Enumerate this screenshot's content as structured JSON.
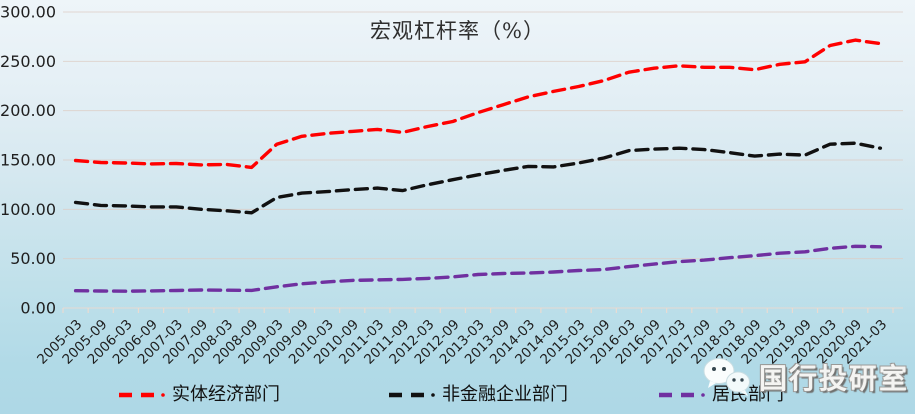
{
  "watermark": {
    "text": "国行投研室",
    "icon": "wechat-icon"
  },
  "colors": {
    "series_real_economy": "#ff0000",
    "series_nonfinancial_corp": "#111111",
    "series_household": "#7030a0",
    "gridline": "#ddccc4",
    "axis_line": "#e9dbd2",
    "axis_text": "#1f1f1f",
    "background_top": "#eef5f9",
    "background_bottom": "#aed8e6"
  },
  "chart_data": {
    "type": "line",
    "title": "宏观杠杆率（%）",
    "xlabel": "",
    "ylabel": "",
    "ylim": [
      0,
      300
    ],
    "y_ticks": [
      0,
      50,
      100,
      150,
      200,
      250,
      300
    ],
    "y_tick_labels": [
      "0.00",
      "50.00",
      "100.00",
      "150.00",
      "200.00",
      "250.00",
      "300.00"
    ],
    "grid": true,
    "legend_position": "bottom",
    "line_style": "dashed",
    "categories": [
      "2005-03",
      "2005-09",
      "2006-03",
      "2006-09",
      "2007-03",
      "2007-09",
      "2008-03",
      "2008-09",
      "2009-03",
      "2009-09",
      "2010-03",
      "2010-09",
      "2011-03",
      "2011-09",
      "2012-03",
      "2012-09",
      "2013-03",
      "2013-09",
      "2014-03",
      "2014-09",
      "2015-03",
      "2015-09",
      "2016-03",
      "2016-09",
      "2017-03",
      "2017-09",
      "2018-03",
      "2018-09",
      "2019-03",
      "2019-09",
      "2020-03",
      "2020-09",
      "2021-03"
    ],
    "series": [
      {
        "name": "实体经济部门",
        "color": "#ff0000",
        "values": [
          149.5,
          147.5,
          147,
          146,
          146.5,
          145,
          145.5,
          142.5,
          166,
          174,
          177,
          179,
          181,
          178,
          184,
          189,
          198,
          206,
          214,
          219.5,
          224.5,
          230.5,
          239,
          243,
          245.5,
          244,
          244,
          241.5,
          247,
          249.5,
          266,
          271.5,
          268
        ]
      },
      {
        "name": "非金融企业部门",
        "color": "#111111",
        "values": [
          107,
          104,
          103.5,
          102.5,
          102.5,
          100,
          98.5,
          96.5,
          112,
          116.5,
          118,
          120,
          121.5,
          119,
          125,
          130,
          135,
          139.5,
          143.5,
          143,
          147,
          152,
          159.5,
          161,
          162,
          160.5,
          157.5,
          154,
          156,
          155,
          166,
          167,
          162
        ]
      },
      {
        "name": "居民部门",
        "color": "#7030a0",
        "values": [
          17.5,
          17.2,
          17,
          17.3,
          17.7,
          18.2,
          18,
          17.8,
          21.5,
          24.5,
          26.5,
          28,
          28.5,
          29,
          30,
          31.5,
          34,
          35,
          35.5,
          36.5,
          38,
          39,
          42,
          44.5,
          47,
          48.5,
          51,
          53,
          55.5,
          57,
          60.5,
          62.5,
          62
        ]
      }
    ]
  }
}
